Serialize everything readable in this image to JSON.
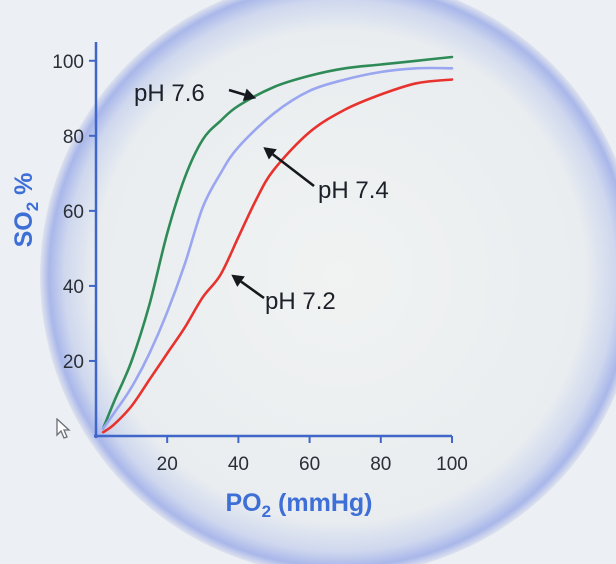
{
  "chart_data": {
    "type": "line",
    "xlabel": "PO₂ (mmHg)",
    "ylabel": "SO₂ %",
    "xlim": [
      0,
      100
    ],
    "ylim": [
      0,
      105
    ],
    "xticks": [
      "20",
      "40",
      "60",
      "80",
      "100"
    ],
    "yticks": [
      "20",
      "40",
      "60",
      "80",
      "100"
    ],
    "grid": false,
    "series": [
      {
        "name": "pH 7.6",
        "color": "#2e8b57",
        "points": [
          [
            2,
            2
          ],
          [
            5,
            9
          ],
          [
            10,
            20
          ],
          [
            15,
            35
          ],
          [
            20,
            54
          ],
          [
            25,
            69
          ],
          [
            30,
            79
          ],
          [
            35,
            84
          ],
          [
            40,
            88
          ],
          [
            50,
            93
          ],
          [
            60,
            96
          ],
          [
            70,
            98
          ],
          [
            80,
            99
          ],
          [
            90,
            100
          ],
          [
            100,
            101
          ]
        ]
      },
      {
        "name": "pH 7.4",
        "color": "#9aa6f0",
        "points": [
          [
            2,
            2
          ],
          [
            5,
            6
          ],
          [
            10,
            13
          ],
          [
            15,
            22
          ],
          [
            20,
            33
          ],
          [
            25,
            46
          ],
          [
            30,
            61
          ],
          [
            35,
            70
          ],
          [
            40,
            77
          ],
          [
            50,
            86
          ],
          [
            60,
            92
          ],
          [
            70,
            95
          ],
          [
            80,
            97
          ],
          [
            90,
            98
          ],
          [
            100,
            98
          ]
        ]
      },
      {
        "name": "pH 7.2",
        "color": "#e8322d",
        "points": [
          [
            2,
            1
          ],
          [
            5,
            3
          ],
          [
            10,
            8
          ],
          [
            15,
            15
          ],
          [
            20,
            22
          ],
          [
            25,
            29
          ],
          [
            30,
            37
          ],
          [
            35,
            43
          ],
          [
            40,
            53
          ],
          [
            45,
            63
          ],
          [
            50,
            71
          ],
          [
            60,
            81
          ],
          [
            70,
            87
          ],
          [
            80,
            91
          ],
          [
            90,
            94
          ],
          [
            100,
            95
          ]
        ]
      }
    ],
    "annotations": [
      {
        "text": "pH 7.6",
        "points_to": [
          45,
          90
        ]
      },
      {
        "text": "pH 7.4",
        "points_to": [
          47,
          77
        ]
      },
      {
        "text": "pH 7.2",
        "points_to": [
          38,
          43
        ]
      }
    ]
  }
}
